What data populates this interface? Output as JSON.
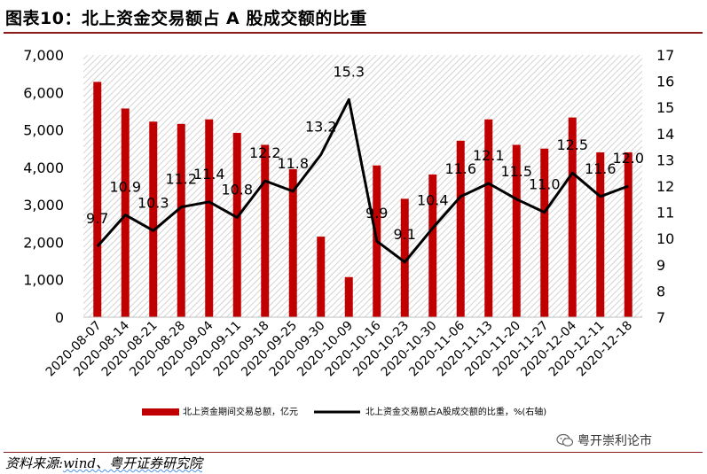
{
  "title": "图表10：北上资金交易额占 A 股成交额的比重",
  "source": {
    "prefix": "资料来源:",
    "name": "wind、粤开证券研究院"
  },
  "watermark": "粤开崇利论市",
  "watermark_icon": "wechat-icon",
  "colors": {
    "bar": "#C00000",
    "line": "#000000",
    "rule": "#8B1A1A"
  },
  "chart_data": {
    "type": "bar",
    "categories": [
      "2020-08-07",
      "2020-08-14",
      "2020-08-21",
      "2020-08-28",
      "2020-09-04",
      "2020-09-11",
      "2020-09-18",
      "2020-09-25",
      "2020-09-30",
      "2020-10-09",
      "2020-10-16",
      "2020-10-23",
      "2020-10-30",
      "2020-11-06",
      "2020-11-13",
      "2020-11-20",
      "2020-11-27",
      "2020-12-04",
      "2020-12-11",
      "2020-12-18"
    ],
    "series": [
      {
        "name": "北上资金期间交易总额，亿元",
        "type": "bar",
        "axis": "left",
        "values": [
          6280,
          5570,
          5220,
          5160,
          5280,
          4920,
          4600,
          3950,
          2150,
          1070,
          4050,
          3160,
          3810,
          4710,
          5280,
          4600,
          4500,
          5330,
          4400,
          4400
        ]
      },
      {
        "name": "北上资金交易额占A股成交额的比重，%(右轴)",
        "type": "line",
        "axis": "right",
        "values": [
          9.7,
          10.9,
          10.3,
          11.2,
          11.4,
          10.8,
          12.2,
          11.8,
          13.2,
          15.3,
          9.9,
          9.1,
          10.4,
          11.6,
          12.1,
          11.5,
          11.0,
          12.5,
          11.6,
          12.0
        ],
        "labels": [
          "9.7",
          "10.9",
          "10.3",
          "11.2",
          "11.4",
          "10.8",
          "12.2",
          "11.8",
          "13.2",
          "15.3",
          "9.9",
          "9.1",
          "10.4",
          "11.6",
          "12.1",
          "11.5",
          "11.0",
          "12.5",
          "11.6",
          "12.0"
        ]
      }
    ],
    "y_left": {
      "lim": [
        0,
        7000
      ],
      "ticks": [
        "0",
        "1,000",
        "2,000",
        "3,000",
        "4,000",
        "5,000",
        "6,000",
        "7,000"
      ]
    },
    "y_right": {
      "lim": [
        7,
        17
      ],
      "ticks": [
        "7",
        "8",
        "9",
        "10",
        "11",
        "12",
        "13",
        "14",
        "15",
        "16",
        "17"
      ]
    },
    "legend_position": "bottom",
    "grid": false,
    "background": "hatched"
  }
}
